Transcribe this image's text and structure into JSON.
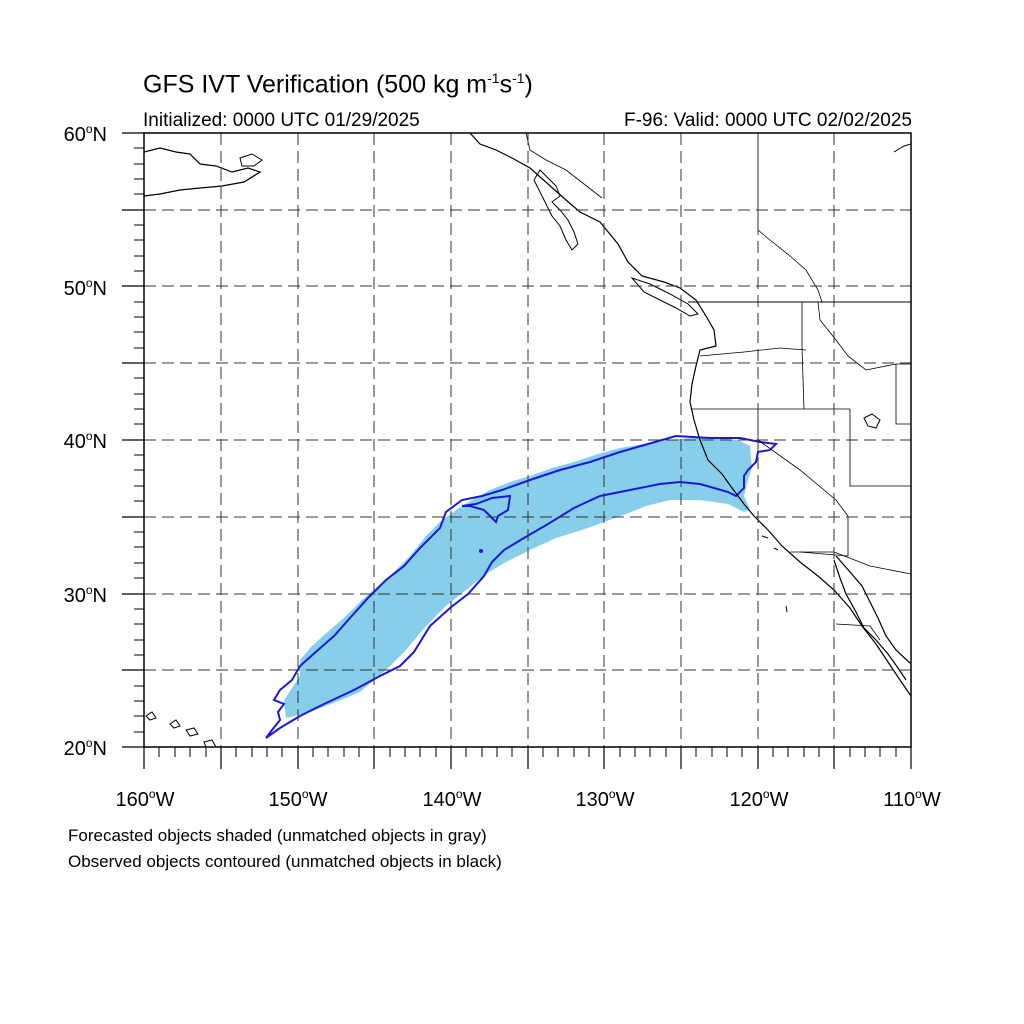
{
  "title": {
    "main": "GFS IVT Verification (500 kg m",
    "exp1": "-1",
    "mid": "s",
    "exp2": "-1",
    "end": ")"
  },
  "initialized": "Initialized: 0000 UTC 01/29/2025",
  "valid": "F-96: Valid: 0000 UTC 02/02/2025",
  "lat_labels": [
    {
      "num": "60",
      "hemi": "N"
    },
    {
      "num": "50",
      "hemi": "N"
    },
    {
      "num": "40",
      "hemi": "N"
    },
    {
      "num": "30",
      "hemi": "N"
    },
    {
      "num": "20",
      "hemi": "N"
    }
  ],
  "lon_labels": [
    {
      "num": "160",
      "hemi": "W"
    },
    {
      "num": "150",
      "hemi": "W"
    },
    {
      "num": "140",
      "hemi": "W"
    },
    {
      "num": "130",
      "hemi": "W"
    },
    {
      "num": "120",
      "hemi": "W"
    },
    {
      "num": "110",
      "hemi": "W"
    }
  ],
  "notes": {
    "forecast": "Forecasted objects shaded (unmatched objects in gray)",
    "observed": "Observed objects contoured (unmatched objects in black)"
  },
  "colors": {
    "forecast_fill": "#87ceeb",
    "observed_contour": "#1a1ad6",
    "coast": "#000000",
    "grid": "#333333"
  },
  "map": {
    "lon_range": [
      -160,
      -110
    ],
    "lat_range": [
      20,
      60
    ],
    "grid_lines": "dashed every 5 degrees"
  }
}
